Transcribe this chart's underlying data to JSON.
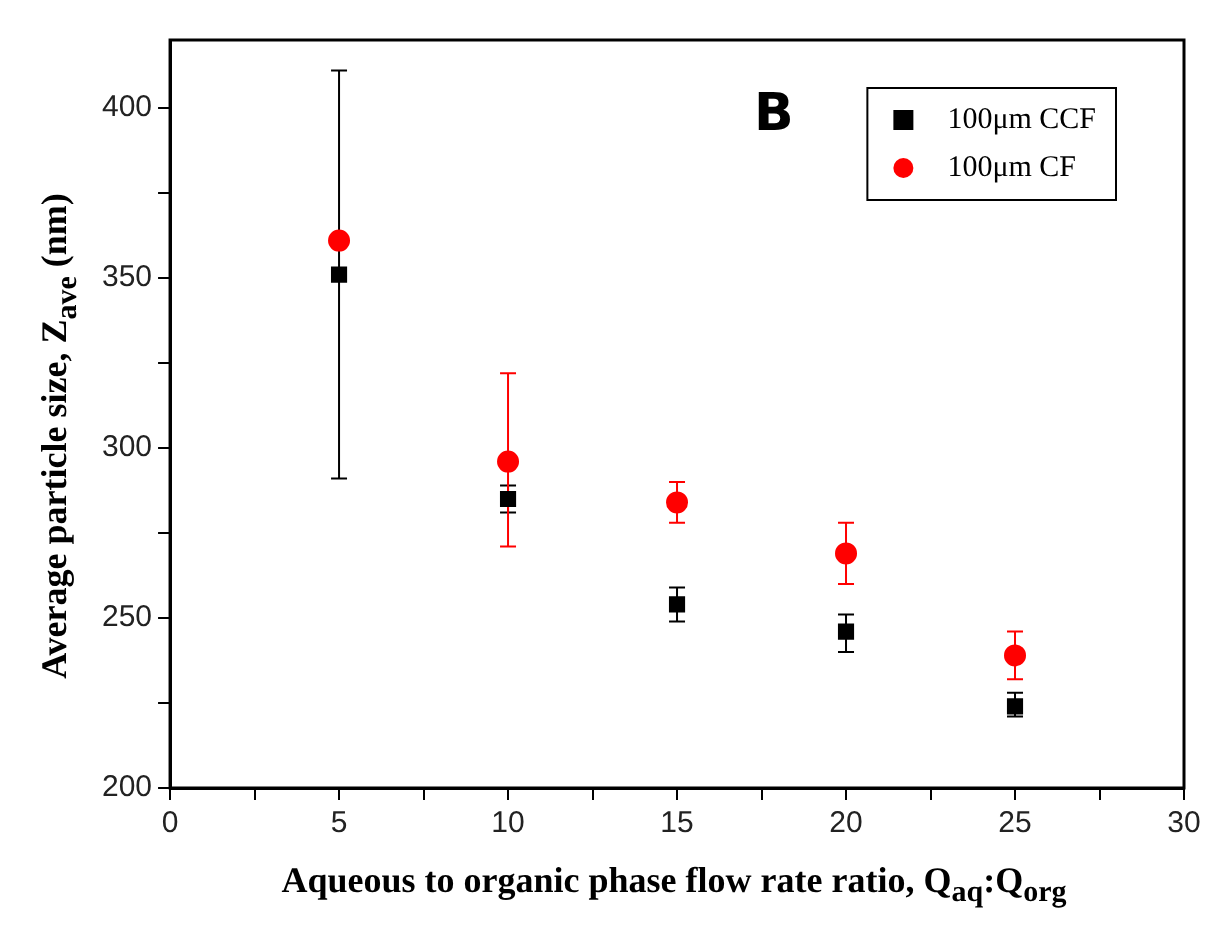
{
  "chart_data": {
    "type": "scatter",
    "xlabel": "Aqueous to organic phase flow rate ratio, Q$_{aq}$:Q$_{org}$",
    "ylabel": "Average particle size, Z$_{ave}$ (nm)",
    "annotations": [
      "B"
    ],
    "xlim": [
      0,
      30
    ],
    "xticks": [
      0,
      {
        "value": 2.5,
        "label": null
      },
      5,
      {
        "value": 7.5,
        "label": null
      },
      10,
      {
        "value": 12.5,
        "label": null
      },
      15,
      {
        "value": 17.5,
        "label": null
      },
      20,
      {
        "value": 22.5,
        "label": null
      },
      25,
      {
        "value": 27.5,
        "label": null
      },
      30
    ],
    "ylim": [
      200,
      420
    ],
    "yticks": [
      200,
      {
        "value": 225,
        "label": null
      },
      250,
      {
        "value": 275,
        "label": null
      },
      300,
      {
        "value": 325,
        "label": null
      },
      350,
      {
        "value": 375,
        "label": null
      },
      400
    ],
    "grid": false,
    "legend": "top right",
    "x": [
      5,
      10,
      15,
      20,
      25
    ],
    "series": [
      {
        "name": "100μm CCF",
        "color": "#000000",
        "marker": "square",
        "values": [
          351,
          285,
          254,
          246,
          224
        ],
        "errors": [
          [
            291,
            411
          ],
          [
            281,
            289
          ],
          [
            249,
            259
          ],
          [
            240,
            251
          ],
          [
            221,
            228
          ]
        ]
      },
      {
        "name": "100μm CF",
        "color": "#ff0000",
        "marker": "circle",
        "values": [
          361,
          296,
          284,
          269,
          239
        ],
        "errors": [
          null,
          [
            271,
            322
          ],
          [
            278,
            290
          ],
          [
            260,
            278
          ],
          [
            232,
            246
          ]
        ]
      }
    ]
  }
}
